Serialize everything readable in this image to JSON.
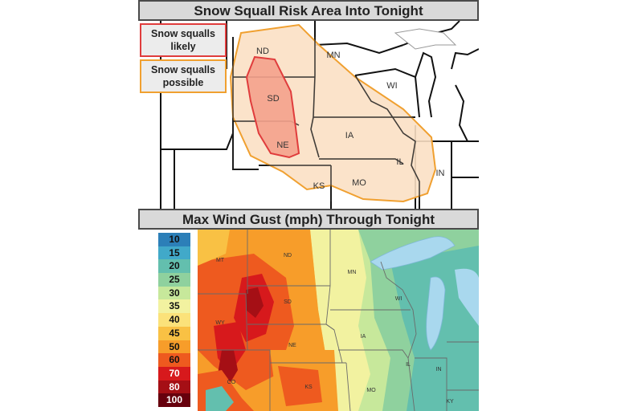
{
  "top_panel": {
    "title": "Snow Squall Risk Area Into Tonight",
    "legend": [
      {
        "label": "Snow squalls likely",
        "border": "#e03c3c",
        "fill": "#f4a18c"
      },
      {
        "label": "Snow squalls possible",
        "border": "#f0a030",
        "fill": "#fbe0c4"
      }
    ],
    "state_labels": [
      "ND",
      "MN",
      "SD",
      "WI",
      "NE",
      "IA",
      "IL",
      "IN",
      "KS",
      "MO"
    ]
  },
  "bottom_panel": {
    "title": "Max Wind Gust (mph) Through Tonight",
    "scale": [
      {
        "value": "10",
        "color": "#2c7fb8"
      },
      {
        "value": "15",
        "color": "#41a9c9"
      },
      {
        "value": "20",
        "color": "#63bfae"
      },
      {
        "value": "25",
        "color": "#8fd19e"
      },
      {
        "value": "30",
        "color": "#c7e89b"
      },
      {
        "value": "35",
        "color": "#f2f2a0"
      },
      {
        "value": "40",
        "color": "#fbe27a"
      },
      {
        "value": "45",
        "color": "#f9c144"
      },
      {
        "value": "50",
        "color": "#f79d2a"
      },
      {
        "value": "60",
        "color": "#ee5a1f"
      },
      {
        "value": "70",
        "color": "#d7191c"
      },
      {
        "value": "80",
        "color": "#a50f15"
      },
      {
        "value": "100",
        "color": "#67000d"
      }
    ],
    "state_labels": [
      "MT",
      "ND",
      "MN",
      "SD",
      "WI",
      "WY",
      "NE",
      "IA",
      "IL",
      "IN",
      "CO",
      "KS",
      "MO",
      "KY"
    ]
  }
}
